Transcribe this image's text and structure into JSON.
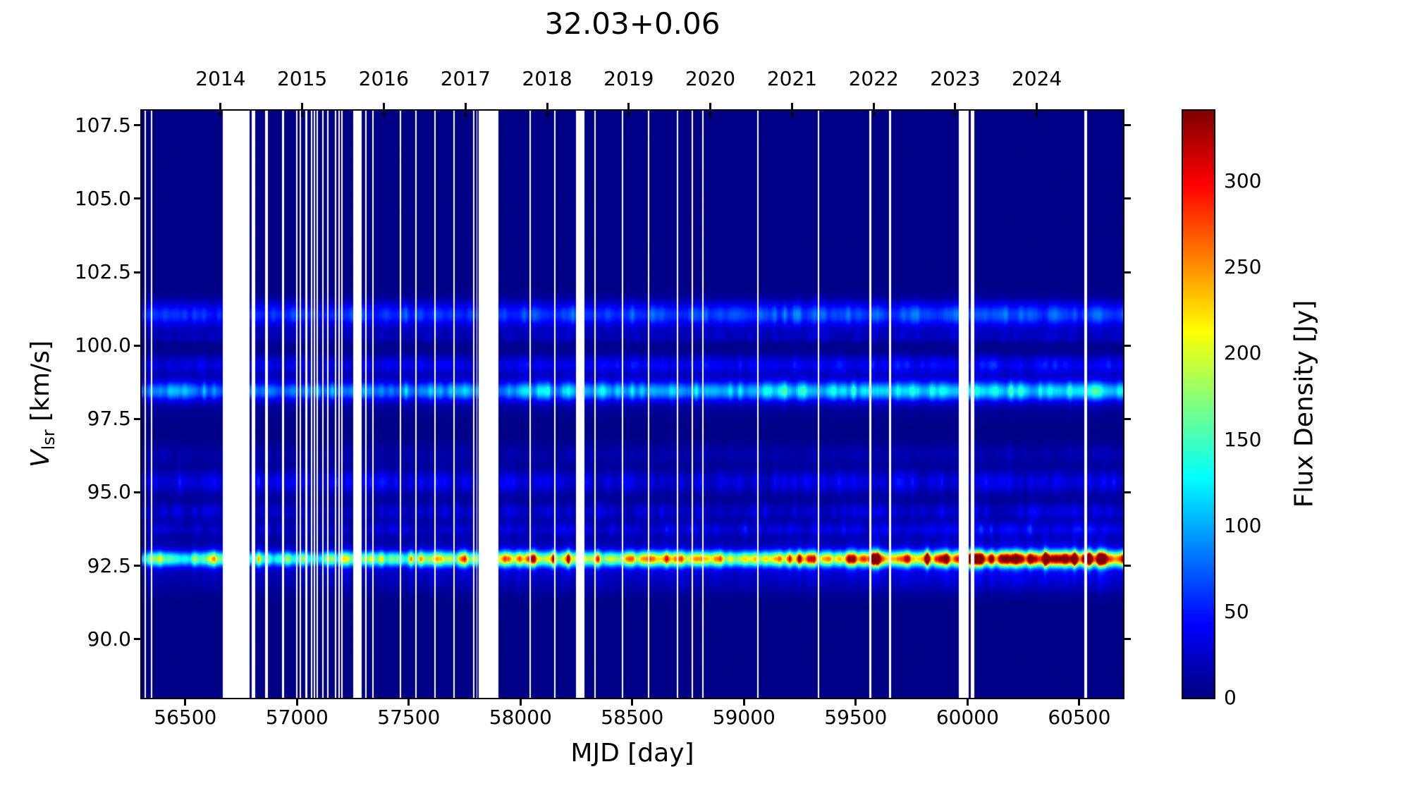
{
  "figure": {
    "background": "#ffffff",
    "spine_color": "#000000",
    "text_color": "#000000",
    "gap_color": "#ffffff"
  },
  "chart_data": {
    "type": "heatmap",
    "title": "32.03+0.06",
    "xlabel": "MJD [day]",
    "ylabel_prefix": "V",
    "ylabel_sub": "lsr",
    "ylabel_suffix": " [km/s]",
    "colorbar_label": "Flux Density [Jy]",
    "colormap": "jet",
    "grid": false,
    "xlim": [
      56305,
      60696
    ],
    "ylim": [
      88.0,
      108.0
    ],
    "vmin": 0,
    "vmax": 341,
    "xticks": [
      56500,
      57000,
      57500,
      58000,
      58500,
      59000,
      59500,
      60000,
      60500
    ],
    "yticks": [
      {
        "label": "90.0",
        "v": 90.0
      },
      {
        "label": "92.5",
        "v": 92.5
      },
      {
        "label": "95.0",
        "v": 95.0
      },
      {
        "label": "97.5",
        "v": 97.5
      },
      {
        "label": "100.0",
        "v": 100.0
      },
      {
        "label": "102.5",
        "v": 102.5
      },
      {
        "label": "105.0",
        "v": 105.0
      },
      {
        "label": "107.5",
        "v": 107.5
      }
    ],
    "top_axis_years": [
      {
        "label": "2014",
        "mjd": 56658
      },
      {
        "label": "2015",
        "mjd": 57023
      },
      {
        "label": "2016",
        "mjd": 57388
      },
      {
        "label": "2017",
        "mjd": 57754
      },
      {
        "label": "2018",
        "mjd": 58119
      },
      {
        "label": "2019",
        "mjd": 58484
      },
      {
        "label": "2020",
        "mjd": 58849
      },
      {
        "label": "2021",
        "mjd": 59215
      },
      {
        "label": "2022",
        "mjd": 59580
      },
      {
        "label": "2023",
        "mjd": 59945
      },
      {
        "label": "2024",
        "mjd": 60310
      }
    ],
    "colorbar_ticks": [
      0,
      50,
      100,
      150,
      200,
      250,
      300
    ],
    "epoch_days": 22,
    "noise_floor_jy": [
      1.0,
      1.8
    ],
    "column_jitter": 0.05,
    "bands": [
      {
        "v": 92.73,
        "sigmas": [
          0.17,
          0.55
        ],
        "fracs": [
          1,
          0.13
        ],
        "speckle": 0.3,
        "profile": [
          [
            56305,
            120
          ],
          [
            56450,
            138
          ],
          [
            56650,
            150
          ],
          [
            56900,
            128
          ],
          [
            57150,
            148
          ],
          [
            57450,
            152
          ],
          [
            57750,
            160
          ],
          [
            57980,
            190
          ],
          [
            58200,
            200
          ],
          [
            58450,
            195
          ],
          [
            58700,
            215
          ],
          [
            58950,
            200
          ],
          [
            59200,
            212
          ],
          [
            59450,
            232
          ],
          [
            59650,
            258
          ],
          [
            59850,
            272
          ],
          [
            60050,
            285
          ],
          [
            60250,
            302
          ],
          [
            60450,
            298
          ],
          [
            60700,
            312
          ]
        ]
      },
      {
        "v": 98.45,
        "sigmas": [
          0.22,
          0.5
        ],
        "fracs": [
          1,
          0.15
        ],
        "speckle": 0.22,
        "profile": [
          [
            56305,
            66
          ],
          [
            57300,
            74
          ],
          [
            58300,
            84
          ],
          [
            59100,
            94
          ],
          [
            59600,
            108
          ],
          [
            59950,
            112
          ],
          [
            60300,
            103
          ],
          [
            60700,
            100
          ]
        ]
      },
      {
        "v": 101.05,
        "sigmas": [
          0.3
        ],
        "fracs": [
          1
        ],
        "speckle": 0.18,
        "profile": [
          [
            56305,
            52
          ],
          [
            57600,
            57
          ],
          [
            58800,
            63
          ],
          [
            59800,
            66
          ],
          [
            60700,
            61
          ]
        ]
      },
      {
        "v": 99.35,
        "sigmas": [
          0.22
        ],
        "fracs": [
          1
        ],
        "speckle": 0.25,
        "profile": [
          [
            56305,
            26
          ],
          [
            58500,
            33
          ],
          [
            60700,
            36
          ]
        ]
      },
      {
        "v": 100.3,
        "sigmas": [
          0.16
        ],
        "fracs": [
          1
        ],
        "speckle": 0.3,
        "profile": [
          [
            56305,
            13
          ],
          [
            60700,
            17
          ]
        ]
      },
      {
        "v": 95.35,
        "sigmas": [
          0.28
        ],
        "fracs": [
          1
        ],
        "speckle": 0.35,
        "profile": [
          [
            56305,
            34
          ],
          [
            57600,
            30
          ],
          [
            59000,
            26
          ],
          [
            60700,
            30
          ]
        ]
      },
      {
        "v": 94.35,
        "sigmas": [
          0.22
        ],
        "fracs": [
          1
        ],
        "speckle": 0.4,
        "profile": [
          [
            56305,
            20
          ],
          [
            58500,
            22
          ],
          [
            60700,
            25
          ]
        ]
      },
      {
        "v": 96.3,
        "sigmas": [
          0.25
        ],
        "fracs": [
          1
        ],
        "speckle": 0.3,
        "profile": [
          [
            56305,
            10
          ],
          [
            60700,
            13
          ]
        ]
      },
      {
        "v": 93.75,
        "sigmas": [
          0.16
        ],
        "fracs": [
          1
        ],
        "speckle": 0.5,
        "profile": [
          [
            56305,
            16
          ],
          [
            59000,
            24
          ],
          [
            60700,
            31
          ]
        ]
      },
      {
        "v": 91.95,
        "sigmas": [
          0.3
        ],
        "fracs": [
          1
        ],
        "speckle": 0.4,
        "profile": [
          [
            56305,
            6
          ],
          [
            59000,
            9
          ],
          [
            60700,
            13
          ]
        ]
      }
    ],
    "gaps": [
      [
        56318,
        56325
      ],
      [
        56345,
        56352
      ],
      [
        56668,
        56788
      ],
      [
        56798,
        56812
      ],
      [
        56856,
        56869
      ],
      [
        56934,
        56943
      ],
      [
        56995,
        57003
      ],
      [
        57012,
        57018
      ],
      [
        57038,
        57046
      ],
      [
        57062,
        57068
      ],
      [
        57075,
        57081
      ],
      [
        57088,
        57094
      ],
      [
        57112,
        57119
      ],
      [
        57136,
        57142
      ],
      [
        57170,
        57177
      ],
      [
        57185,
        57192
      ],
      [
        57198,
        57204
      ],
      [
        57252,
        57288
      ],
      [
        57304,
        57312
      ],
      [
        57338,
        57344
      ],
      [
        57458,
        57465
      ],
      [
        57530,
        57536
      ],
      [
        57614,
        57621
      ],
      [
        57700,
        57706
      ],
      [
        57788,
        57794
      ],
      [
        57802,
        57808
      ],
      [
        57812,
        57902
      ],
      [
        58040,
        58046
      ],
      [
        58150,
        58156
      ],
      [
        58248,
        58285
      ],
      [
        58330,
        58336
      ],
      [
        58452,
        58460
      ],
      [
        58570,
        58576
      ],
      [
        58700,
        58707
      ],
      [
        58766,
        58772
      ],
      [
        58812,
        58818
      ],
      [
        59060,
        59066
      ],
      [
        59330,
        59336
      ],
      [
        59560,
        59570
      ],
      [
        59650,
        59657
      ],
      [
        59962,
        60006
      ],
      [
        60016,
        60030
      ],
      [
        60524,
        60534
      ]
    ]
  }
}
